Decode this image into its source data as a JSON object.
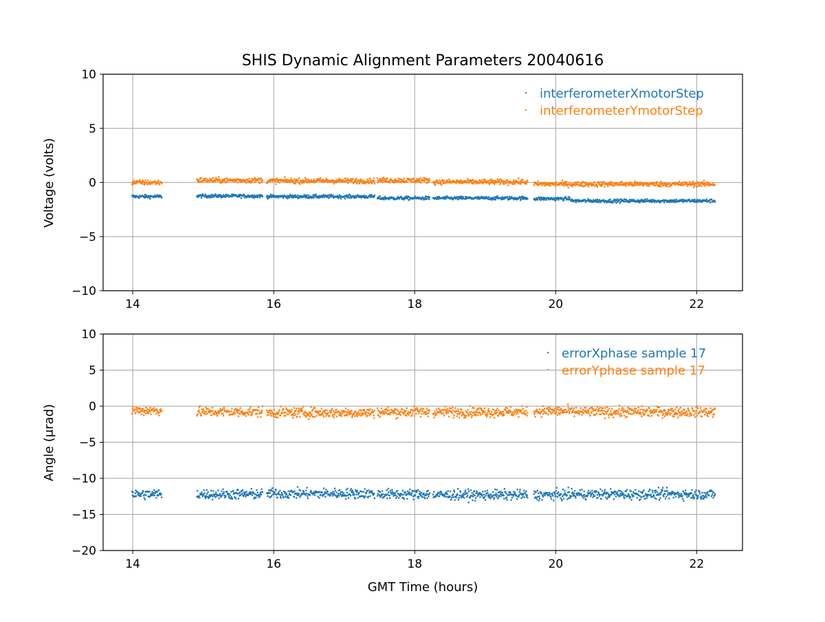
{
  "chart_data": [
    {
      "type": "scatter",
      "title": "SHIS Dynamic Alignment Parameters 20040616",
      "xlabel": "",
      "ylabel": "Voltage (volts)",
      "xlim": [
        13.58,
        22.65
      ],
      "ylim": [
        -10,
        10
      ],
      "xticks": [
        14,
        16,
        18,
        20,
        22
      ],
      "yticks": [
        10,
        5,
        0,
        -5,
        -10
      ],
      "ytick_labels": [
        "10",
        "5",
        "0",
        "−5",
        "−10"
      ],
      "grid": true,
      "legend": "top-right",
      "segments": [
        [
          13.99,
          14.41
        ],
        [
          14.91,
          15.84
        ],
        [
          15.9,
          17.43
        ],
        [
          17.47,
          18.21
        ],
        [
          18.26,
          19.6
        ],
        [
          19.69,
          20.21
        ],
        [
          20.22,
          22.26
        ]
      ],
      "series": [
        {
          "name": "interferometerXmotorStep",
          "color": "#1f77b4",
          "means": [
            -1.3,
            -1.25,
            -1.3,
            -1.45,
            -1.45,
            -1.5,
            -1.7
          ],
          "noise": 0.08
        },
        {
          "name": "interferometerYmotorStep",
          "color": "#ff7f0e",
          "means": [
            0.0,
            0.2,
            0.15,
            0.2,
            0.05,
            -0.15,
            -0.15
          ],
          "noise": 0.12
        }
      ]
    },
    {
      "type": "scatter",
      "title": "",
      "xlabel": "GMT Time (hours)",
      "ylabel": "Angle (μrad)",
      "xlim": [
        13.58,
        22.65
      ],
      "ylim": [
        -20,
        10
      ],
      "xticks": [
        14,
        16,
        18,
        20,
        22
      ],
      "yticks": [
        10,
        5,
        0,
        -5,
        -10,
        -15,
        -20
      ],
      "ytick_labels": [
        "10",
        "5",
        "0",
        "−5",
        "−10",
        "−15",
        "−20"
      ],
      "grid": true,
      "legend": "top-right",
      "segments": [
        [
          13.99,
          14.41
        ],
        [
          14.91,
          15.84
        ],
        [
          15.9,
          17.43
        ],
        [
          17.47,
          18.21
        ],
        [
          18.26,
          19.6
        ],
        [
          19.69,
          20.21
        ],
        [
          20.22,
          22.26
        ]
      ],
      "series": [
        {
          "name": "errorXphase sample 17",
          "color": "#1f77b4",
          "means": [
            -12.2,
            -12.2,
            -12.1,
            -12.2,
            -12.3,
            -12.3,
            -12.2
          ],
          "noise": 0.35
        },
        {
          "name": "errorYphase sample 17",
          "color": "#ff7f0e",
          "means": [
            -0.6,
            -0.8,
            -0.9,
            -0.8,
            -0.8,
            -0.7,
            -0.8
          ],
          "noise": 0.35
        }
      ]
    }
  ]
}
